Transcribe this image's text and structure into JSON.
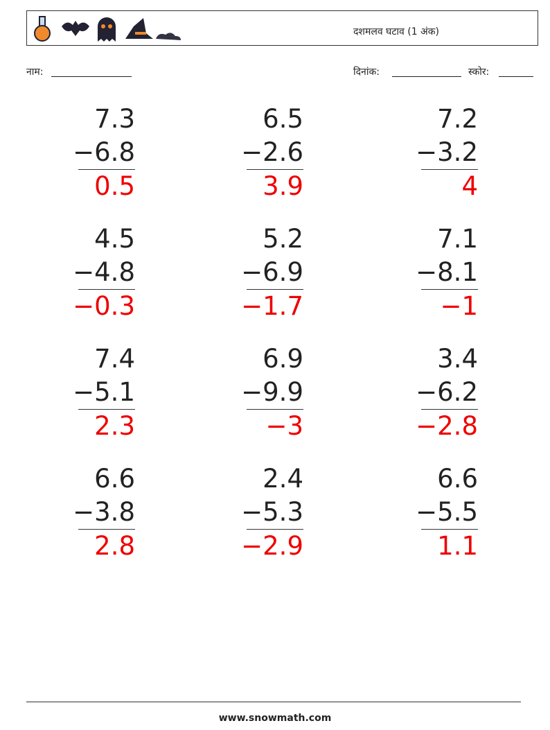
{
  "header": {
    "title": "दशमलव घटाव (1 अंक)"
  },
  "fields": {
    "name": "नाम:",
    "date": "दिनांक:",
    "score": "स्कोर:"
  },
  "problems": [
    {
      "top": "7.3",
      "bottom": "−6.8",
      "answer": "0.5"
    },
    {
      "top": "6.5",
      "bottom": "−2.6",
      "answer": "3.9"
    },
    {
      "top": "7.2",
      "bottom": "−3.2",
      "answer": "4"
    },
    {
      "top": "4.5",
      "bottom": "−4.8",
      "answer": "−0.3"
    },
    {
      "top": "5.2",
      "bottom": "−6.9",
      "answer": "−1.7"
    },
    {
      "top": "7.1",
      "bottom": "−8.1",
      "answer": "−1"
    },
    {
      "top": "7.4",
      "bottom": "−5.1",
      "answer": "2.3"
    },
    {
      "top": "6.9",
      "bottom": "−9.9",
      "answer": "−3"
    },
    {
      "top": "3.4",
      "bottom": "−6.2",
      "answer": "−2.8"
    },
    {
      "top": "6.6",
      "bottom": "−3.8",
      "answer": "2.8"
    },
    {
      "top": "2.4",
      "bottom": "−5.3",
      "answer": "−2.9"
    },
    {
      "top": "6.6",
      "bottom": "−5.5",
      "answer": "1.1"
    }
  ],
  "footer": {
    "site": "www.snowmath.com"
  }
}
